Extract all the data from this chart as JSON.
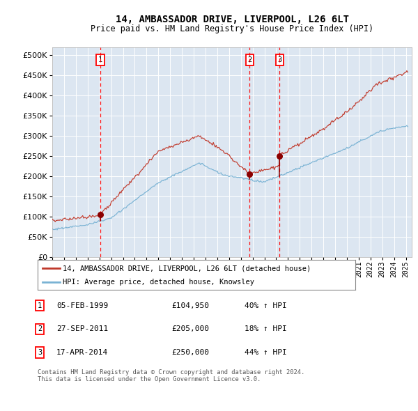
{
  "title1": "14, AMBASSADOR DRIVE, LIVERPOOL, L26 6LT",
  "title2": "Price paid vs. HM Land Registry's House Price Index (HPI)",
  "bg_color": "#dce6f1",
  "red_label": "14, AMBASSADOR DRIVE, LIVERPOOL, L26 6LT (detached house)",
  "blue_label": "HPI: Average price, detached house, Knowsley",
  "transactions": [
    {
      "num": 1,
      "date": "05-FEB-1999",
      "price": 104950,
      "pct": "40%",
      "dir": "↑",
      "year_x": 1999.09
    },
    {
      "num": 2,
      "date": "27-SEP-2011",
      "price": 205000,
      "pct": "18%",
      "dir": "↑",
      "year_x": 2011.75
    },
    {
      "num": 3,
      "date": "17-APR-2014",
      "price": 250000,
      "pct": "44%",
      "dir": "↑",
      "year_x": 2014.29
    }
  ],
  "footer": "Contains HM Land Registry data © Crown copyright and database right 2024.\nThis data is licensed under the Open Government Licence v3.0.",
  "ylim": [
    0,
    520000
  ],
  "yticks": [
    0,
    50000,
    100000,
    150000,
    200000,
    250000,
    300000,
    350000,
    400000,
    450000,
    500000
  ],
  "xlim_start": 1995.0,
  "xlim_end": 2025.5,
  "red_color": "#c0392b",
  "blue_color": "#7ab3d4",
  "marker_color": "#8b0000",
  "title1_fontsize": 10,
  "title2_fontsize": 8.5
}
